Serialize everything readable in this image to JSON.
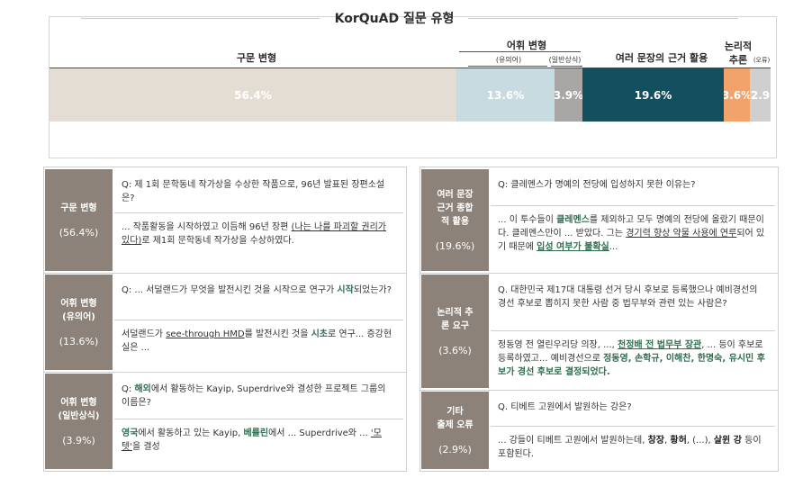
{
  "chart": {
    "title": "KorQuAD 질문 유형",
    "headers": {
      "syntax": "구문 변형",
      "lexical": "어휘 변형",
      "lexical_synonym": "(유의어)",
      "lexical_common": "(일반상식)",
      "multi": "여러 문장의 근거 활용",
      "logic_1": "논리적",
      "logic_2": "추론",
      "error": "(오류)"
    }
  },
  "chart_data": {
    "type": "bar",
    "orientation": "horizontal-stacked",
    "categories": [
      "구문 변형",
      "어휘 변형 (유의어)",
      "어휘 변형 (일반상식)",
      "여러 문장의 근거 활용",
      "논리적 추론",
      "(오류)"
    ],
    "values": [
      56.4,
      13.6,
      3.9,
      19.6,
      3.6,
      2.9
    ],
    "labels": [
      "56.4%",
      "13.6%",
      "3.9%",
      "19.6%",
      "3.6%",
      "2.9"
    ],
    "colors": [
      "#e4ddd3",
      "#c8dbe0",
      "#a9a6a6",
      "#134f5c",
      "#f2a36b",
      "#cfcfcf"
    ],
    "xlim": [
      0,
      100
    ]
  },
  "left_table": [
    {
      "label_lines": [
        "구문 변형"
      ],
      "pct": "(56.4%)",
      "q": "Q: 제 1회 문학동네 작가상을 수상한 작품으로, 96년 발표된 장편소설은?",
      "a": [
        {
          "t": "... 작품활동을 시작하였고 이듬해 96년 장편 "
        },
        {
          "t": "(나는 나를 파괴할 권리가 있다)",
          "s": "u"
        },
        {
          "t": "로 제1회 문학동네 작가상을 수상하였다."
        }
      ]
    },
    {
      "label_lines": [
        "어휘 변형",
        "(유의어)"
      ],
      "pct": "(13.6%)",
      "q": [
        {
          "t": "Q: ... 서덜랜드가 무엇을 발전시킨 것을 시작으로 연구가 "
        },
        {
          "t": "시작",
          "s": "hl"
        },
        {
          "t": "되었는가?"
        }
      ],
      "a": [
        {
          "t": "서덜랜드가 "
        },
        {
          "t": "see-through HMD",
          "s": "u"
        },
        {
          "t": "를 발전시킨 것을 "
        },
        {
          "t": "시초",
          "s": "hl"
        },
        {
          "t": "로 연구... 증강현실은 ..."
        }
      ]
    },
    {
      "label_lines": [
        "어휘 변형",
        "(일반상식)"
      ],
      "pct": "(3.9%)",
      "q": [
        {
          "t": "Q: "
        },
        {
          "t": "해외",
          "s": "hl"
        },
        {
          "t": "에서 활동하는 Kayip, Superdrive와 결성한 프로젝트 그룹의 이름은?"
        }
      ],
      "a": [
        {
          "t": "영국",
          "s": "hl"
        },
        {
          "t": "에서 활동하고 있는 Kayip, "
        },
        {
          "t": "베를린",
          "s": "hl"
        },
        {
          "t": "에서 ... Superdrive와 ... "
        },
        {
          "t": "'모텟'",
          "s": "u"
        },
        {
          "t": "을 결성"
        }
      ]
    }
  ],
  "right_table": [
    {
      "label_lines": [
        "여러 문장",
        "근거 종합",
        "적 활용"
      ],
      "pct": "(19.6%)",
      "q": "Q: 클레멘스가 명예의 전당에 입성하지 못한 이유는?",
      "a": [
        {
          "t": "... 이 투수들이 "
        },
        {
          "t": "클레멘스",
          "s": "hl"
        },
        {
          "t": "를 제외하고 모두 명예의 전당에 올랐기 때문이다. 클레멘스만이 ... 받았다. 그는 "
        },
        {
          "t": "경기력 향상 약물 사용에 연루",
          "s": "u"
        },
        {
          "t": "되어 있기 때문에 "
        },
        {
          "t": "입성 여부가 불확실",
          "s": "hu"
        },
        {
          "t": "..."
        }
      ]
    },
    {
      "label_lines": [
        "논리적 추",
        "론 요구"
      ],
      "pct": "(3.6%)",
      "q": "Q. 대한민국 제17대 대통령 선거 당시 후보로 등록했으나 예비경선의 경선 후보로 뽑히지 못한 사람 중 법무부와 관련 있는 사람은?",
      "a": [
        {
          "t": "정동영 전 열린우리당 의장, ..., "
        },
        {
          "t": "천정배 전 법무부 장관",
          "s": "hu"
        },
        {
          "t": ", ... 등이 후보로 등록하였고... 예비경선으로 "
        },
        {
          "t": "정동영, 손학규, 이해찬, 한명숙, 유시민 후보가 경선 후보로 결정되었다.",
          "s": "hl"
        }
      ]
    },
    {
      "label_lines": [
        "기타",
        "출제 오류"
      ],
      "pct": "(2.9%)",
      "q": "Q. 티베트 고원에서 발원하는 강은?",
      "a": [
        {
          "t": "... 강들이 티베트 고원에서 발원하는데, "
        },
        {
          "t": "창장",
          "s": "dk"
        },
        {
          "t": ", "
        },
        {
          "t": "황허",
          "s": "dk"
        },
        {
          "t": ", (...), "
        },
        {
          "t": "살윈 강",
          "s": "dk"
        },
        {
          "t": " 등이 포함된다."
        }
      ]
    }
  ]
}
